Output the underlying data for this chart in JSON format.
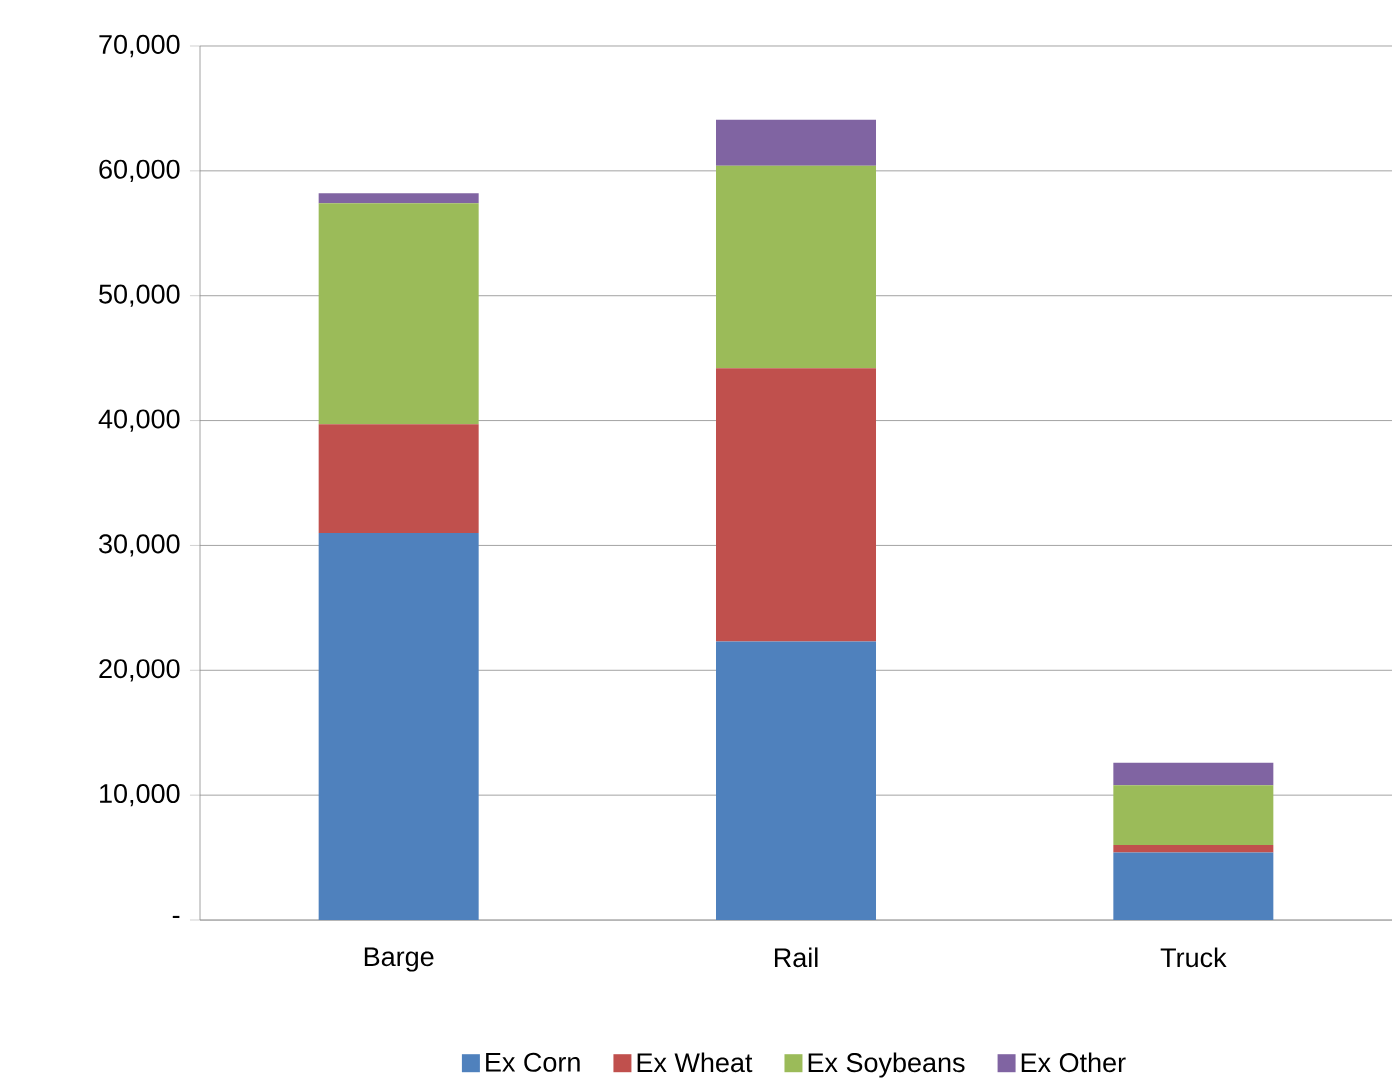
{
  "chart_data": {
    "type": "bar",
    "stacked": true,
    "categories": [
      "Barge",
      "Rail",
      "Truck"
    ],
    "series": [
      {
        "name": "Ex Corn",
        "color": "#4f81bd",
        "values": [
          31000,
          22300,
          5400
        ]
      },
      {
        "name": "Ex Wheat",
        "color": "#c0504d",
        "values": [
          8700,
          21900,
          600
        ]
      },
      {
        "name": "Ex Soybeans",
        "color": "#9bbb59",
        "values": [
          17700,
          16200,
          4800
        ]
      },
      {
        "name": "Ex Other",
        "color": "#8064a2",
        "values": [
          800,
          3700,
          1800
        ]
      }
    ],
    "ylim": [
      0,
      70000
    ],
    "yticks": [
      {
        "value": 0,
        "label": "-"
      },
      {
        "value": 10000,
        "label": "10,000"
      },
      {
        "value": 20000,
        "label": "20,000"
      },
      {
        "value": 30000,
        "label": "30,000"
      },
      {
        "value": 40000,
        "label": "40,000"
      },
      {
        "value": 50000,
        "label": "50,000"
      },
      {
        "value": 60000,
        "label": "60,000"
      },
      {
        "value": 70000,
        "label": "70,000"
      }
    ],
    "grid": "y",
    "legend": "bottom"
  }
}
